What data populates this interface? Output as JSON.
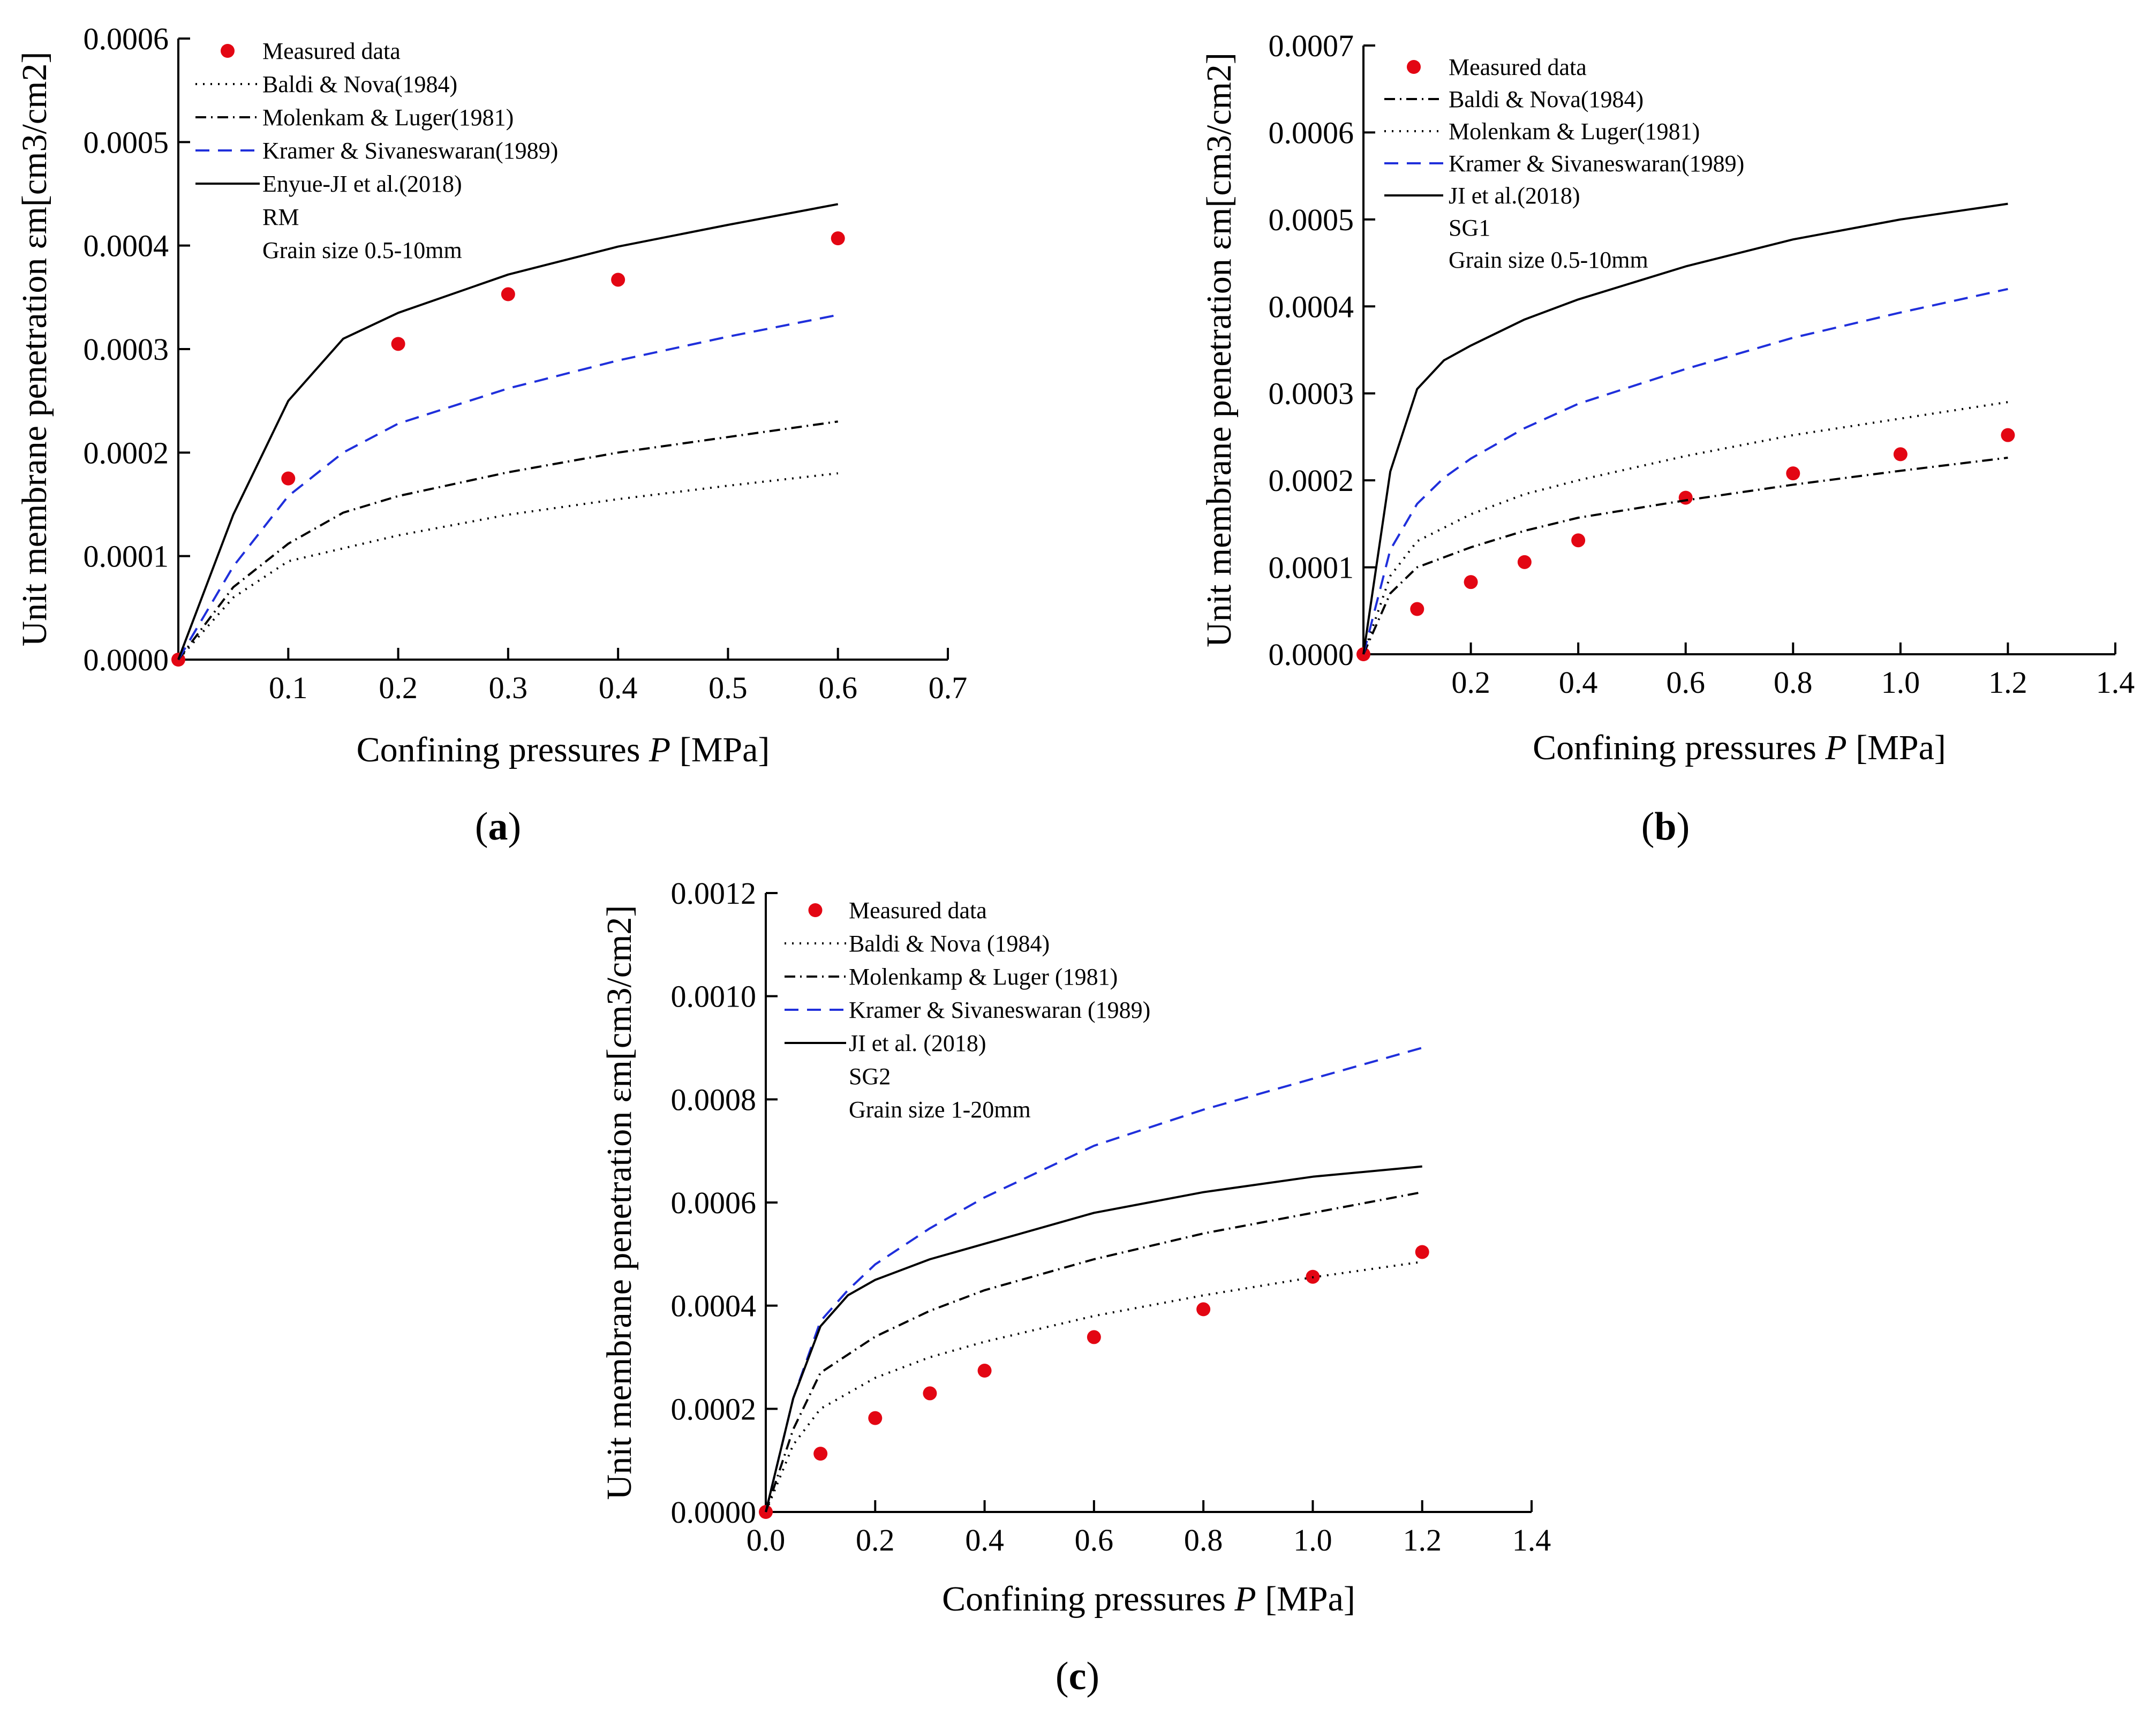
{
  "chart_data": [
    {
      "type": "scatter+line",
      "panel": "(a)",
      "caption_letter": "a",
      "xlabel": "Confining pressures P [MPa]",
      "xlabel_prefix": "Confining pressures ",
      "xlabel_var": "P",
      "xlabel_suffix": " [MPa]",
      "ylabel": "Unit membrane penetration εm[cm3/cm2]",
      "xlim": [
        0,
        0.7
      ],
      "ylim": [
        0,
        0.0006
      ],
      "xticks": [
        0.1,
        0.2,
        0.3,
        0.4,
        0.5,
        0.6,
        0.7
      ],
      "xtick_labels": [
        "0.1",
        "0.2",
        "0.3",
        "0.4",
        "0.5",
        "0.6",
        "0.7"
      ],
      "yticks": [
        0,
        0.0001,
        0.0002,
        0.0003,
        0.0004,
        0.0005,
        0.0006
      ],
      "ytick_labels": [
        "0.0000",
        "0.0001",
        "0.0002",
        "0.0003",
        "0.0004",
        "0.0005",
        "0.0006"
      ],
      "legend_notes": [
        "RM",
        "Grain size 0.5-10mm"
      ],
      "series": [
        {
          "name": "Measured data",
          "style": "marker",
          "x": [
            0,
            0.1,
            0.2,
            0.3,
            0.4,
            0.6
          ],
          "y": [
            0,
            0.000175,
            0.000305,
            0.000353,
            0.000367,
            0.000407
          ]
        },
        {
          "name": "Baldi & Nova(1984)",
          "style": "dotted",
          "x": [
            0,
            0.05,
            0.1,
            0.2,
            0.3,
            0.4,
            0.5,
            0.6
          ],
          "y": [
            0,
            6e-05,
            9.5e-05,
            0.00012,
            0.00014,
            0.000155,
            0.000168,
            0.00018
          ]
        },
        {
          "name": "Molenkam & Luger(1981)",
          "style": "dashdot",
          "x": [
            0,
            0.05,
            0.1,
            0.15,
            0.2,
            0.3,
            0.4,
            0.5,
            0.6
          ],
          "y": [
            0,
            7e-05,
            0.000112,
            0.000142,
            0.000158,
            0.000181,
            0.0002,
            0.000215,
            0.00023
          ]
        },
        {
          "name": "Kramer & Sivaneswaran(1989)",
          "style": "dashed",
          "x": [
            0,
            0.05,
            0.1,
            0.15,
            0.2,
            0.3,
            0.4,
            0.5,
            0.6
          ],
          "y": [
            0,
            9e-05,
            0.000158,
            0.0002,
            0.000228,
            0.000262,
            0.000289,
            0.000312,
            0.000333
          ]
        },
        {
          "name": "Enyue-JI et al.(2018)",
          "style": "solid",
          "x": [
            0,
            0.05,
            0.1,
            0.15,
            0.2,
            0.3,
            0.4,
            0.5,
            0.6
          ],
          "y": [
            0,
            0.00014,
            0.00025,
            0.00031,
            0.000335,
            0.000372,
            0.000399,
            0.00042,
            0.00044
          ]
        }
      ]
    },
    {
      "type": "scatter+line",
      "panel": "(b)",
      "caption_letter": "b",
      "xlabel": "Confining pressures P [MPa]",
      "xlabel_prefix": "Confining pressures ",
      "xlabel_var": "P",
      "xlabel_suffix": " [MPa]",
      "ylabel": "Unit membrane penetration εm[cm3/cm2]",
      "xlim": [
        0,
        1.4
      ],
      "ylim": [
        0,
        0.0007
      ],
      "xticks": [
        0.2,
        0.4,
        0.6,
        0.8,
        1.0,
        1.2,
        1.4
      ],
      "xtick_labels": [
        "0.2",
        "0.4",
        "0.6",
        "0.8",
        "1.0",
        "1.2",
        "1.4"
      ],
      "yticks": [
        0,
        0.0001,
        0.0002,
        0.0003,
        0.0004,
        0.0005,
        0.0006,
        0.0007
      ],
      "ytick_labels": [
        "0.0000",
        "0.0001",
        "0.0002",
        "0.0003",
        "0.0004",
        "0.0005",
        "0.0006",
        "0.0007"
      ],
      "legend_notes": [
        "SG1",
        "Grain size 0.5-10mm"
      ],
      "series": [
        {
          "name": "Measured data",
          "style": "marker",
          "x": [
            0,
            0.1,
            0.2,
            0.3,
            0.4,
            0.6,
            0.8,
            1.0,
            1.2
          ],
          "y": [
            0,
            5.2e-05,
            8.3e-05,
            0.000106,
            0.000131,
            0.00018,
            0.000208,
            0.00023,
            0.000252
          ]
        },
        {
          "name": "Baldi & Nova(1984)",
          "style": "dashdot",
          "x": [
            0,
            0.05,
            0.1,
            0.2,
            0.3,
            0.4,
            0.6,
            0.8,
            1.0,
            1.2
          ],
          "y": [
            0,
            7e-05,
            0.0001,
            0.000123,
            0.000142,
            0.000157,
            0.000177,
            0.000195,
            0.000211,
            0.000226
          ]
        },
        {
          "name": "Molenkam & Luger(1981)",
          "style": "dotted",
          "x": [
            0,
            0.05,
            0.1,
            0.2,
            0.3,
            0.4,
            0.6,
            0.8,
            1.0,
            1.2
          ],
          "y": [
            0,
            9e-05,
            0.00013,
            0.000161,
            0.000184,
            0.0002,
            0.000228,
            0.000252,
            0.000271,
            0.00029
          ]
        },
        {
          "name": "Kramer & Sivaneswaran(1989)",
          "style": "dashed",
          "x": [
            0,
            0.05,
            0.1,
            0.15,
            0.2,
            0.3,
            0.4,
            0.6,
            0.8,
            1.0,
            1.2
          ],
          "y": [
            0,
            0.00012,
            0.000173,
            0.000203,
            0.000225,
            0.00026,
            0.000288,
            0.000328,
            0.000364,
            0.000393,
            0.00042
          ]
        },
        {
          "name": "JI et al.(2018)",
          "style": "solid",
          "x": [
            0,
            0.05,
            0.1,
            0.15,
            0.2,
            0.3,
            0.4,
            0.6,
            0.8,
            1.0,
            1.2
          ],
          "y": [
            0,
            0.00021,
            0.000305,
            0.000338,
            0.000355,
            0.000385,
            0.000408,
            0.000446,
            0.000477,
            0.0005,
            0.000518
          ]
        }
      ]
    },
    {
      "type": "scatter+line",
      "panel": "(c)",
      "caption_letter": "c",
      "xlabel": "Confining pressures P [MPa]",
      "xlabel_prefix": "Confining pressures ",
      "xlabel_var": "P",
      "xlabel_suffix": " [MPa]",
      "ylabel": "Unit membrane penetration εm[cm3/cm2]",
      "xlim": [
        0,
        1.4
      ],
      "ylim": [
        0,
        0.0012
      ],
      "xticks": [
        0,
        0.2,
        0.4,
        0.6,
        0.8,
        1.0,
        1.2,
        1.4
      ],
      "xtick_labels": [
        "0.0",
        "0.2",
        "0.4",
        "0.6",
        "0.8",
        "1.0",
        "1.2",
        "1.4"
      ],
      "yticks": [
        0,
        0.0002,
        0.0004,
        0.0006,
        0.0008,
        0.001,
        0.0012
      ],
      "ytick_labels": [
        "0.0000",
        "0.0002",
        "0.0004",
        "0.0006",
        "0.0008",
        "0.0010",
        "0.0012"
      ],
      "legend_notes": [
        "SG2",
        "Grain size 1-20mm"
      ],
      "series": [
        {
          "name": "Measured data",
          "style": "marker",
          "x": [
            0,
            0.1,
            0.2,
            0.3,
            0.4,
            0.6,
            0.8,
            1.0,
            1.2
          ],
          "y": [
            0,
            0.000113,
            0.000182,
            0.00023,
            0.000274,
            0.000339,
            0.000393,
            0.000456,
            0.000504
          ]
        },
        {
          "name": "Baldi & Nova (1984)",
          "style": "dotted",
          "x": [
            0,
            0.05,
            0.1,
            0.2,
            0.3,
            0.4,
            0.6,
            0.8,
            1.0,
            1.2
          ],
          "y": [
            0,
            0.00013,
            0.0002,
            0.00026,
            0.0003,
            0.00033,
            0.00038,
            0.00042,
            0.000455,
            0.000485
          ]
        },
        {
          "name": "Molenkamp & Luger (1981)",
          "style": "dashdot",
          "x": [
            0,
            0.05,
            0.1,
            0.2,
            0.3,
            0.4,
            0.6,
            0.8,
            1.0,
            1.2
          ],
          "y": [
            0,
            0.00016,
            0.00027,
            0.00034,
            0.00039,
            0.00043,
            0.00049,
            0.00054,
            0.00058,
            0.00062
          ]
        },
        {
          "name": "Kramer & Sivaneswaran (1989)",
          "style": "dashed",
          "x": [
            0,
            0.05,
            0.1,
            0.15,
            0.2,
            0.3,
            0.4,
            0.6,
            0.8,
            1.0,
            1.2
          ],
          "y": [
            0,
            0.00022,
            0.00037,
            0.00043,
            0.00048,
            0.00055,
            0.00061,
            0.00071,
            0.00078,
            0.00084,
            0.0009
          ]
        },
        {
          "name": "JI et al. (2018)",
          "style": "solid",
          "x": [
            0,
            0.05,
            0.1,
            0.15,
            0.2,
            0.3,
            0.4,
            0.6,
            0.8,
            1.0,
            1.2
          ],
          "y": [
            0,
            0.00022,
            0.00036,
            0.00042,
            0.00045,
            0.00049,
            0.00052,
            0.00058,
            0.00062,
            0.00065,
            0.00067
          ]
        }
      ]
    }
  ],
  "colors": {
    "measured": "#e30613",
    "kramer": "#1f2fdb",
    "model": "#000000",
    "axis": "#000000"
  }
}
